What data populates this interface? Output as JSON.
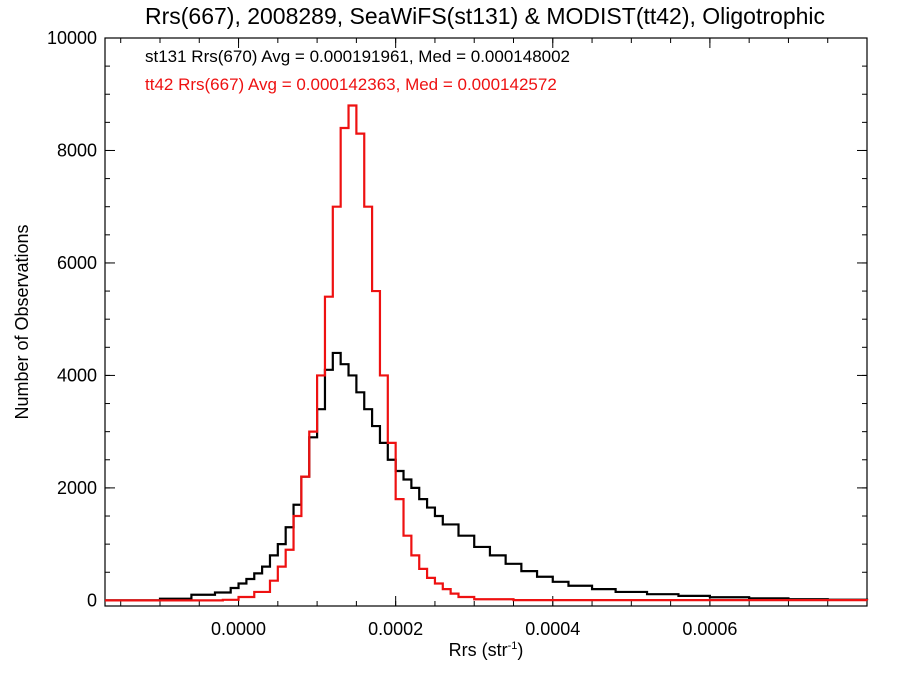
{
  "chart_data": {
    "type": "line",
    "title": "Rrs(667), 2008289, SeaWiFS(st131) & MODIST(tt42), Oligotrophic",
    "xlabel": "Rrs (str",
    "xlabel_superscript": "-1",
    "xlabel_suffix": ")",
    "ylabel": "Number of Observations",
    "xlim": [
      -0.00017,
      0.0008
    ],
    "ylim": [
      -100,
      10000
    ],
    "xticks": [
      0.0,
      0.0002,
      0.0004,
      0.0006
    ],
    "xtick_labels": [
      "0.0000",
      "0.0002",
      "0.0004",
      "0.0006"
    ],
    "yticks": [
      0,
      2000,
      4000,
      6000,
      8000,
      10000
    ],
    "ytick_labels": [
      "0",
      "2000",
      "4000",
      "6000",
      "8000",
      "10000"
    ],
    "grid": false,
    "legend_placement": "top-left",
    "series": [
      {
        "name": "st131 Rrs(670) Avg = 0.000191961, Med = 0.000148002",
        "color": "#000000",
        "style": "step",
        "x": [
          -0.00017,
          -0.0001,
          -6e-05,
          -3e-05,
          -1e-05,
          0.0,
          1e-05,
          2e-05,
          3e-05,
          4e-05,
          5e-05,
          6e-05,
          7e-05,
          8e-05,
          9e-05,
          0.0001,
          0.00011,
          0.00012,
          0.00013,
          0.00014,
          0.00015,
          0.00016,
          0.00017,
          0.00018,
          0.00019,
          0.0002,
          0.00021,
          0.00022,
          0.00023,
          0.00024,
          0.00025,
          0.00026,
          0.00028,
          0.0003,
          0.00032,
          0.00034,
          0.00036,
          0.00038,
          0.0004,
          0.00042,
          0.00045,
          0.00048,
          0.00052,
          0.00056,
          0.0006,
          0.00065,
          0.0007,
          0.00075,
          0.0008
        ],
        "y": [
          0,
          30,
          100,
          140,
          220,
          300,
          380,
          480,
          600,
          800,
          1000,
          1300,
          1700,
          2200,
          2900,
          3400,
          4100,
          4400,
          4200,
          4000,
          3700,
          3400,
          3100,
          2800,
          2500,
          2300,
          2150,
          2000,
          1800,
          1650,
          1500,
          1350,
          1150,
          950,
          800,
          650,
          520,
          420,
          330,
          260,
          200,
          150,
          110,
          80,
          55,
          35,
          20,
          12,
          5
        ]
      },
      {
        "name": "tt42 Rrs(667) Avg = 0.000142363, Med = 0.000142572",
        "color": "#ee1111",
        "style": "step",
        "x": [
          -0.00017,
          -2e-05,
          0.0,
          2e-05,
          4e-05,
          5e-05,
          6e-05,
          7e-05,
          8e-05,
          9e-05,
          0.0001,
          0.00011,
          0.00012,
          0.00013,
          0.00014,
          0.00015,
          0.00016,
          0.00017,
          0.00018,
          0.00019,
          0.0002,
          0.00021,
          0.00022,
          0.00023,
          0.00024,
          0.00025,
          0.00026,
          0.00027,
          0.00028,
          0.0003,
          0.00035,
          0.0008
        ],
        "y": [
          0,
          10,
          60,
          150,
          350,
          600,
          900,
          1500,
          2200,
          3000,
          4000,
          5400,
          7000,
          8400,
          8800,
          8300,
          7000,
          5500,
          4000,
          2800,
          1800,
          1150,
          800,
          560,
          400,
          300,
          200,
          120,
          60,
          20,
          5,
          0
        ]
      }
    ]
  }
}
